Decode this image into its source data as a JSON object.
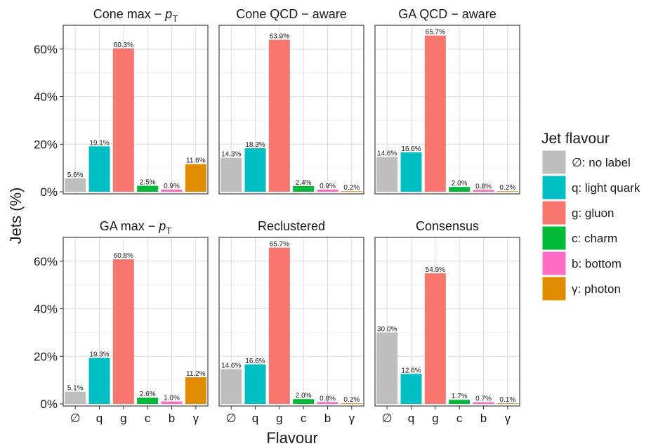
{
  "chart_data": {
    "type": "bar",
    "ylabel": "Jets (%)",
    "xlabel": "Flavour",
    "ylim": [
      0,
      70
    ],
    "y_ticks": [
      0,
      20,
      40,
      60
    ],
    "y_tick_labels": [
      "0%",
      "20%",
      "40%",
      "60%"
    ],
    "grid": true,
    "legend_position": "right",
    "categories": [
      "∅",
      "q",
      "g",
      "c",
      "b",
      "γ"
    ],
    "legend": {
      "title": "Jet flavour",
      "entries": [
        {
          "label": "∅: no label",
          "color": "#bebebe"
        },
        {
          "label": "q: light quark",
          "color": "#00bfc4"
        },
        {
          "label": "g: gluon",
          "color": "#f8766d"
        },
        {
          "label": "c: charm",
          "color": "#00ba38"
        },
        {
          "label": "b: bottom",
          "color": "#ff6cc3"
        },
        {
          "label": "γ: photon",
          "color": "#e08b00"
        }
      ]
    },
    "panels": [
      {
        "title_main": "Cone max − ",
        "title_sub": "p",
        "title_subscript": "T",
        "values": [
          5.6,
          19.1,
          60.3,
          2.5,
          0.9,
          11.6
        ],
        "labels": [
          "5.6%",
          "19.1%",
          "60.3%",
          "2.5%",
          "0.9%",
          "11.6%"
        ]
      },
      {
        "title_main": "Cone QCD − aware",
        "title_sub": "",
        "title_subscript": "",
        "values": [
          14.3,
          18.3,
          63.9,
          2.4,
          0.9,
          0.2
        ],
        "labels": [
          "14.3%",
          "18.3%",
          "63.9%",
          "2.4%",
          "0.9%",
          "0.2%"
        ]
      },
      {
        "title_main": "GA QCD − aware",
        "title_sub": "",
        "title_subscript": "",
        "values": [
          14.6,
          16.6,
          65.7,
          2.0,
          0.8,
          0.2
        ],
        "labels": [
          "14.6%",
          "16.6%",
          "65.7%",
          "2.0%",
          "0.8%",
          "0.2%"
        ]
      },
      {
        "title_main": "GA max − ",
        "title_sub": "p",
        "title_subscript": "T",
        "values": [
          5.1,
          19.3,
          60.8,
          2.6,
          1.0,
          11.2
        ],
        "labels": [
          "5.1%",
          "19.3%",
          "60.8%",
          "2.6%",
          "1.0%",
          "11.2%"
        ]
      },
      {
        "title_main": "Reclustered",
        "title_sub": "",
        "title_subscript": "",
        "values": [
          14.6,
          16.6,
          65.7,
          2.0,
          0.8,
          0.2
        ],
        "labels": [
          "14.6%",
          "16.6%",
          "65.7%",
          "2.0%",
          "0.8%",
          "0.2%"
        ]
      },
      {
        "title_main": "Consensus",
        "title_sub": "",
        "title_subscript": "",
        "values": [
          30.0,
          12.6,
          54.9,
          1.7,
          0.7,
          0.1
        ],
        "labels": [
          "30.0%",
          "12.6%",
          "54.9%",
          "1.7%",
          "0.7%",
          "0.1%"
        ]
      }
    ]
  }
}
